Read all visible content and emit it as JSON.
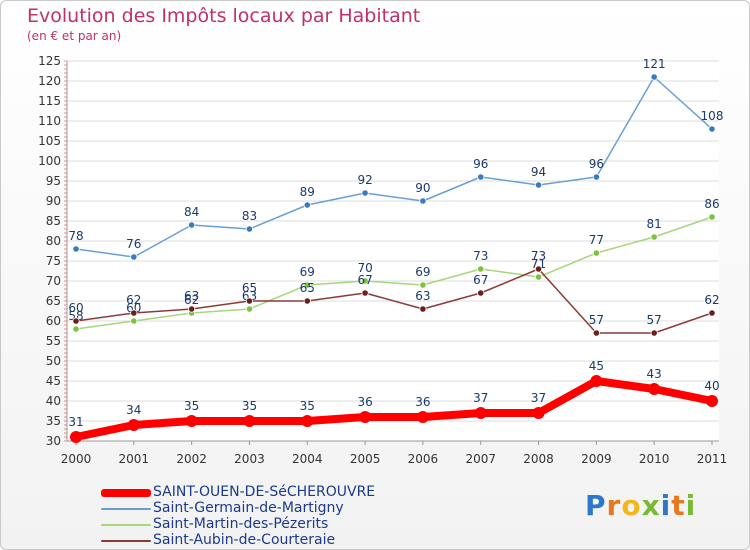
{
  "title": "Evolution des Impôts locaux par Habitant",
  "subtitle": "(en € et par an)",
  "logo": {
    "text": "Proxiti",
    "letter_colors": [
      "#2f78c9",
      "#e8781f",
      "#f0b81c",
      "#7bb833",
      "#2f78c9",
      "#e8781f",
      "#7bb833"
    ]
  },
  "chart_data": {
    "type": "line",
    "title": "Evolution des Impôts locaux par Habitant",
    "subtitle": "(en € et par an)",
    "xlabel": "",
    "ylabel": "",
    "categories": [
      "2000",
      "2001",
      "2002",
      "2003",
      "2004",
      "2005",
      "2006",
      "2007",
      "2008",
      "2009",
      "2010",
      "2011"
    ],
    "ylim": [
      30,
      125
    ],
    "yticks": [
      30,
      35,
      40,
      45,
      50,
      55,
      60,
      65,
      70,
      75,
      80,
      85,
      90,
      95,
      100,
      105,
      110,
      115,
      120,
      125
    ],
    "grid": "horizontal",
    "legend_position": "bottom-left",
    "series": [
      {
        "name": "Saint-Germain-de-Martigny",
        "color": "#6a9fd4",
        "marker": "#3a7bbf",
        "values": [
          78,
          76,
          84,
          83,
          89,
          92,
          90,
          96,
          94,
          96,
          121,
          108
        ]
      },
      {
        "name": "Saint-Martin-des-Pézerits",
        "color": "#a6d67e",
        "marker": "#7cc23f",
        "values": [
          58,
          60,
          62,
          63,
          69,
          70,
          69,
          73,
          71,
          77,
          81,
          86
        ]
      },
      {
        "name": "Saint-Aubin-de-Courteraie",
        "color": "#8b3a3a",
        "marker": "#6b1e1e",
        "values": [
          60,
          62,
          63,
          65,
          65,
          67,
          63,
          67,
          73,
          57,
          57,
          62
        ]
      },
      {
        "name": "SAINT-OUEN-DE-SéCHEROUVRE",
        "color": "#ff0000",
        "marker": "#ff0000",
        "values": [
          31,
          34,
          35,
          35,
          35,
          36,
          36,
          37,
          37,
          45,
          43,
          40
        ]
      }
    ],
    "legend": [
      {
        "name": "SAINT-OUEN-DE-SéCHEROUVRE",
        "color": "#ff0000"
      },
      {
        "name": "Saint-Germain-de-Martigny",
        "color": "#6a9fd4"
      },
      {
        "name": "Saint-Martin-des-Pézerits",
        "color": "#a6d67e"
      },
      {
        "name": "Saint-Aubin-de-Courteraie",
        "color": "#8b3a3a"
      }
    ]
  }
}
